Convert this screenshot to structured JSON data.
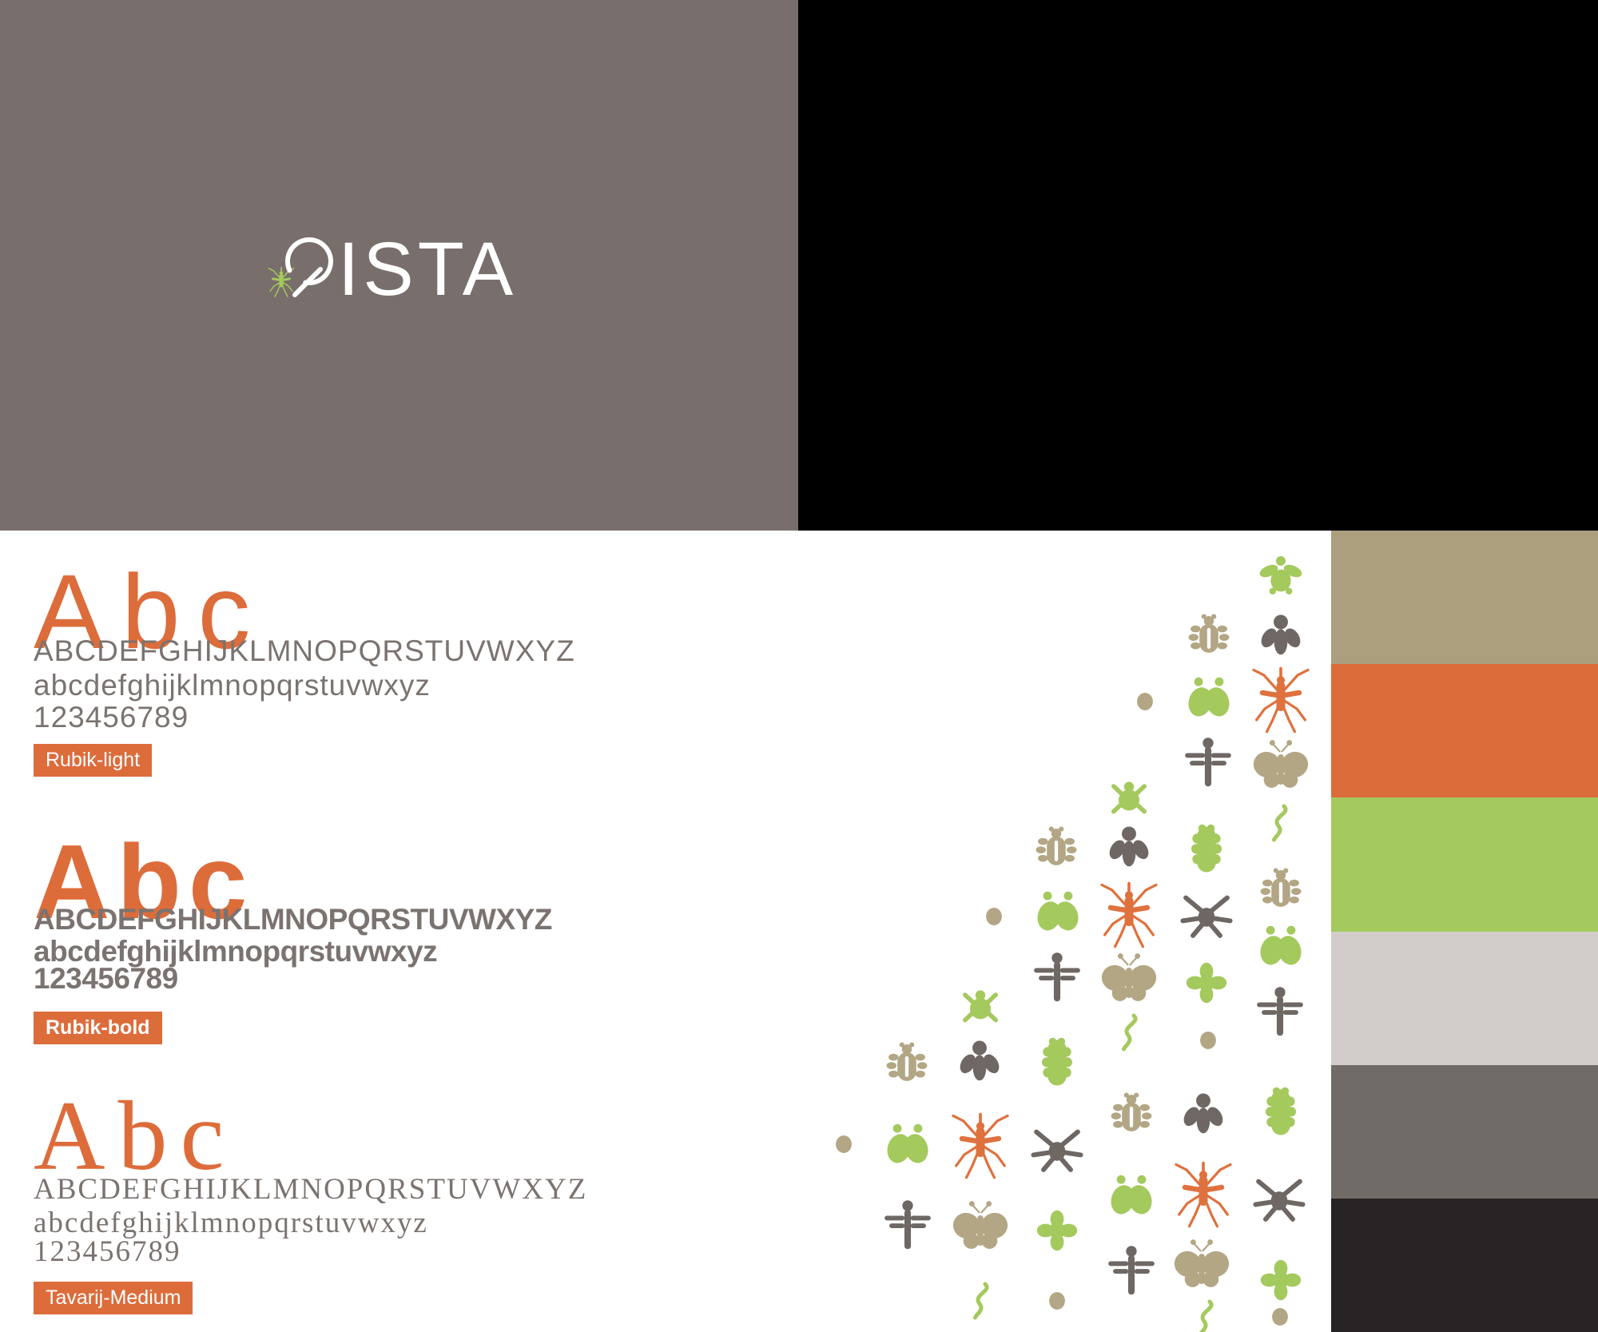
{
  "brand": {
    "name": "QISTA",
    "letters_after_q": "ISTA"
  },
  "panels": {
    "left": {
      "bg": "#786f6c",
      "bug_color": "#a4c95d",
      "text_color": "#ffffff"
    },
    "right": {
      "bg": "#000000",
      "bug_color": "#ffffff",
      "text_color": "#ffffff"
    }
  },
  "colors": {
    "accent_orange": "#dd6c3b",
    "specimen_text": "#7b736f",
    "badge_text": "#ffffff",
    "page_bg": "#ffffff"
  },
  "specimens": [
    {
      "sample": "Abc",
      "uppercase": "ABCDEFGHIJKLMNOPQRSTUVWXYZ",
      "lowercase": "abcdefghijklmnopqrstuvwxyz",
      "digits": "123456789",
      "badge": "Rubik-light"
    },
    {
      "sample": "Abc",
      "uppercase": "ABCDEFGHIJKLMNOPQRSTUVWXYZ",
      "lowercase": "abcdefghijklmnopqrstuvwxyz",
      "digits": "123456789",
      "badge": "Rubik-bold"
    },
    {
      "sample": "Abc",
      "uppercase": "ABCDEFGHIJKLMNOPQRSTUVWXYZ",
      "lowercase": "abcdefghijklmnopqrstuvwxyz",
      "digits": "123456789",
      "badge": "Tavarij-Medium"
    }
  ],
  "palette": [
    {
      "name": "tan",
      "hex": "#ab9f7d"
    },
    {
      "name": "orange",
      "hex": "#dd6c3b"
    },
    {
      "name": "green",
      "hex": "#a4c95d"
    },
    {
      "name": "light-gray",
      "hex": "#d2cdcb"
    },
    {
      "name": "dark-gray",
      "hex": "#716b68"
    },
    {
      "name": "near-black",
      "hex": "#282324"
    }
  ],
  "pattern": {
    "colors": {
      "green": "#a4c95d",
      "tan": "#b3a685",
      "dark": "#6e6763",
      "orange": "#df713e"
    },
    "icons": [
      [
        "fly",
        "green",
        1603,
        723,
        60
      ],
      [
        "moth",
        "dark",
        1603,
        797,
        64
      ],
      [
        "mosquito",
        "orange",
        1603,
        878,
        92
      ],
      [
        "butterfly",
        "tan",
        1603,
        960,
        76
      ],
      [
        "worm",
        "green",
        1601,
        1030,
        50
      ],
      [
        "beetle",
        "tan",
        1603,
        1115,
        62
      ],
      [
        "moth2",
        "green",
        1603,
        1188,
        68
      ],
      [
        "dragonfly",
        "dark",
        1602,
        1270,
        74
      ],
      [
        "caterpillar",
        "green",
        1603,
        1392,
        68
      ],
      [
        "spider",
        "dark",
        1601,
        1500,
        74
      ],
      [
        "cross",
        "green",
        1603,
        1602,
        60
      ],
      [
        "dot",
        "tan",
        1602,
        1648,
        22
      ],
      [
        "beetle",
        "tan",
        1513,
        797,
        62
      ],
      [
        "moth2",
        "green",
        1513,
        877,
        68
      ],
      [
        "dragonfly",
        "dark",
        1512,
        958,
        74
      ],
      [
        "caterpillar",
        "green",
        1510,
        1063,
        68
      ],
      [
        "spider",
        "dark",
        1510,
        1145,
        74
      ],
      [
        "cross",
        "green",
        1510,
        1230,
        60
      ],
      [
        "dot",
        "tan",
        1512,
        1302,
        22
      ],
      [
        "moth",
        "dark",
        1506,
        1396,
        64
      ],
      [
        "mosquito",
        "orange",
        1506,
        1497,
        92
      ],
      [
        "butterfly",
        "tan",
        1504,
        1585,
        76
      ],
      [
        "worm",
        "green",
        1508,
        1650,
        50
      ],
      [
        "dot",
        "tan",
        1433,
        878,
        22
      ],
      [
        "tick",
        "green",
        1413,
        997,
        62
      ],
      [
        "moth",
        "dark",
        1413,
        1062,
        64
      ],
      [
        "mosquito",
        "orange",
        1413,
        1147,
        92
      ],
      [
        "butterfly",
        "tan",
        1413,
        1227,
        76
      ],
      [
        "worm",
        "green",
        1413,
        1292,
        50
      ],
      [
        "beetle",
        "tan",
        1416,
        1396,
        62
      ],
      [
        "moth2",
        "green",
        1416,
        1500,
        68
      ],
      [
        "dragonfly",
        "dark",
        1416,
        1594,
        74
      ],
      [
        "beetle",
        "tan",
        1322,
        1063,
        62
      ],
      [
        "moth2",
        "green",
        1324,
        1145,
        68
      ],
      [
        "dragonfly",
        "dark",
        1323,
        1227,
        74
      ],
      [
        "caterpillar",
        "green",
        1323,
        1330,
        68
      ],
      [
        "spider",
        "dark",
        1323,
        1438,
        74
      ],
      [
        "cross",
        "green",
        1323,
        1540,
        60
      ],
      [
        "dot",
        "tan",
        1323,
        1628,
        22
      ],
      [
        "dot",
        "tan",
        1244,
        1147,
        22
      ],
      [
        "tick",
        "green",
        1227,
        1258,
        62
      ],
      [
        "moth",
        "dark",
        1226,
        1330,
        64
      ],
      [
        "mosquito",
        "orange",
        1227,
        1436,
        92
      ],
      [
        "butterfly",
        "tan",
        1227,
        1537,
        76
      ],
      [
        "worm",
        "green",
        1227,
        1628,
        50
      ],
      [
        "beetle",
        "tan",
        1135,
        1333,
        62
      ],
      [
        "moth2",
        "green",
        1136,
        1436,
        68
      ],
      [
        "dragonfly",
        "dark",
        1136,
        1537,
        74
      ],
      [
        "dot",
        "tan",
        1056,
        1432,
        22
      ]
    ]
  }
}
